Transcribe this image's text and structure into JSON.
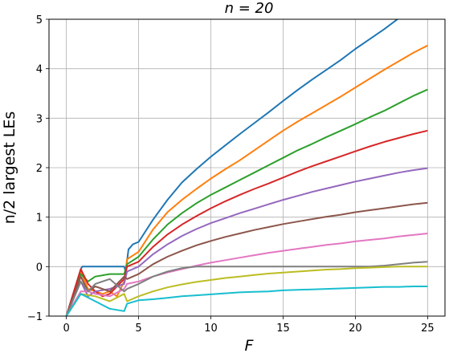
{
  "chart_data": {
    "type": "line",
    "title": "n = 20",
    "xlabel": "F",
    "ylabel": "n/2 largest LEs",
    "xlim": [
      -1.2,
      26.2
    ],
    "ylim": [
      -1,
      5
    ],
    "xticks": [
      "0",
      "5",
      "10",
      "15",
      "20",
      "25"
    ],
    "xtick_values": [
      0,
      5,
      10,
      15,
      20,
      25
    ],
    "yticks": [
      "−1",
      "0",
      "1",
      "2",
      "3",
      "4",
      "5"
    ],
    "ytick_values": [
      -1,
      0,
      1,
      2,
      3,
      4,
      5
    ],
    "grid": true,
    "legend": "none",
    "series": [
      {
        "color": "#1f77b4",
        "points": [
          [
            0,
            -1.0
          ],
          [
            1,
            -0.05
          ],
          [
            1.1,
            0.0
          ],
          [
            2,
            0.0
          ],
          [
            3,
            0.0
          ],
          [
            4,
            0.0
          ],
          [
            4.1,
            -0.1
          ],
          [
            4.3,
            0.35
          ],
          [
            4.6,
            0.45
          ],
          [
            5,
            0.5
          ],
          [
            6,
            0.95
          ],
          [
            7,
            1.35
          ],
          [
            8,
            1.7
          ],
          [
            9,
            1.97
          ],
          [
            10,
            2.22
          ],
          [
            11,
            2.45
          ],
          [
            12,
            2.68
          ],
          [
            13,
            2.9
          ],
          [
            14,
            3.12
          ],
          [
            15,
            3.35
          ],
          [
            16,
            3.57
          ],
          [
            17,
            3.78
          ],
          [
            18,
            3.98
          ],
          [
            19,
            4.18
          ],
          [
            20,
            4.4
          ],
          [
            21,
            4.6
          ],
          [
            22,
            4.8
          ],
          [
            23,
            5.02
          ],
          [
            25,
            5.4
          ]
        ]
      },
      {
        "color": "#ff7f0e",
        "points": [
          [
            0,
            -1.0
          ],
          [
            1,
            -0.1
          ],
          [
            1.5,
            -0.45
          ],
          [
            2,
            -0.5
          ],
          [
            2.5,
            -0.55
          ],
          [
            3,
            -0.5
          ],
          [
            3.5,
            -0.6
          ],
          [
            4,
            -0.3
          ],
          [
            4.2,
            0.15
          ],
          [
            5,
            0.3
          ],
          [
            6,
            0.75
          ],
          [
            7,
            1.1
          ],
          [
            8,
            1.35
          ],
          [
            9,
            1.57
          ],
          [
            10,
            1.78
          ],
          [
            11,
            1.97
          ],
          [
            12,
            2.15
          ],
          [
            13,
            2.35
          ],
          [
            14,
            2.55
          ],
          [
            15,
            2.75
          ],
          [
            16,
            2.93
          ],
          [
            17,
            3.1
          ],
          [
            18,
            3.27
          ],
          [
            19,
            3.44
          ],
          [
            20,
            3.62
          ],
          [
            21,
            3.8
          ],
          [
            22,
            3.98
          ],
          [
            23,
            4.15
          ],
          [
            24,
            4.32
          ],
          [
            25,
            4.47
          ]
        ]
      },
      {
        "color": "#2ca02c",
        "points": [
          [
            0,
            -1.0
          ],
          [
            1,
            -0.15
          ],
          [
            1.5,
            -0.3
          ],
          [
            2,
            -0.2
          ],
          [
            3,
            -0.15
          ],
          [
            4,
            -0.15
          ],
          [
            4.2,
            0.05
          ],
          [
            5,
            0.2
          ],
          [
            6,
            0.55
          ],
          [
            7,
            0.85
          ],
          [
            8,
            1.08
          ],
          [
            9,
            1.28
          ],
          [
            10,
            1.45
          ],
          [
            11,
            1.6
          ],
          [
            12,
            1.75
          ],
          [
            13,
            1.9
          ],
          [
            14,
            2.05
          ],
          [
            15,
            2.2
          ],
          [
            16,
            2.35
          ],
          [
            17,
            2.48
          ],
          [
            18,
            2.62
          ],
          [
            19,
            2.75
          ],
          [
            20,
            2.88
          ],
          [
            21,
            3.02
          ],
          [
            22,
            3.15
          ],
          [
            23,
            3.3
          ],
          [
            24,
            3.45
          ],
          [
            25,
            3.58
          ]
        ]
      },
      {
        "color": "#d62728",
        "points": [
          [
            0,
            -1.0
          ],
          [
            1,
            -0.05
          ],
          [
            1.5,
            -0.35
          ],
          [
            2,
            -0.5
          ],
          [
            2.5,
            -0.6
          ],
          [
            3,
            -0.55
          ],
          [
            3.5,
            -0.4
          ],
          [
            4,
            -0.25
          ],
          [
            4.2,
            0.0
          ],
          [
            5,
            0.1
          ],
          [
            6,
            0.4
          ],
          [
            7,
            0.65
          ],
          [
            8,
            0.85
          ],
          [
            9,
            1.02
          ],
          [
            10,
            1.18
          ],
          [
            11,
            1.32
          ],
          [
            12,
            1.45
          ],
          [
            13,
            1.57
          ],
          [
            14,
            1.68
          ],
          [
            15,
            1.8
          ],
          [
            16,
            1.92
          ],
          [
            17,
            2.03
          ],
          [
            18,
            2.13
          ],
          [
            19,
            2.23
          ],
          [
            20,
            2.33
          ],
          [
            21,
            2.43
          ],
          [
            22,
            2.52
          ],
          [
            23,
            2.6
          ],
          [
            24,
            2.68
          ],
          [
            25,
            2.75
          ]
        ]
      },
      {
        "color": "#9467bd",
        "points": [
          [
            0,
            -1.0
          ],
          [
            1,
            -0.3
          ],
          [
            1.5,
            -0.6
          ],
          [
            2,
            -0.5
          ],
          [
            3,
            -0.45
          ],
          [
            4,
            -0.35
          ],
          [
            4.2,
            -0.1
          ],
          [
            5,
            0.0
          ],
          [
            6,
            0.25
          ],
          [
            7,
            0.45
          ],
          [
            8,
            0.62
          ],
          [
            9,
            0.76
          ],
          [
            10,
            0.88
          ],
          [
            11,
            0.98
          ],
          [
            12,
            1.08
          ],
          [
            13,
            1.17
          ],
          [
            14,
            1.26
          ],
          [
            15,
            1.35
          ],
          [
            16,
            1.43
          ],
          [
            17,
            1.51
          ],
          [
            18,
            1.58
          ],
          [
            19,
            1.65
          ],
          [
            20,
            1.72
          ],
          [
            21,
            1.78
          ],
          [
            22,
            1.84
          ],
          [
            23,
            1.9
          ],
          [
            24,
            1.95
          ],
          [
            25,
            1.99
          ]
        ]
      },
      {
        "color": "#8c564b",
        "points": [
          [
            0,
            -1.0
          ],
          [
            1,
            -0.2
          ],
          [
            1.5,
            -0.5
          ],
          [
            2,
            -0.4
          ],
          [
            3,
            -0.5
          ],
          [
            4,
            -0.2
          ],
          [
            4.2,
            -0.25
          ],
          [
            5,
            -0.15
          ],
          [
            6,
            0.05
          ],
          [
            7,
            0.2
          ],
          [
            8,
            0.32
          ],
          [
            9,
            0.43
          ],
          [
            10,
            0.52
          ],
          [
            11,
            0.6
          ],
          [
            12,
            0.67
          ],
          [
            13,
            0.74
          ],
          [
            14,
            0.8
          ],
          [
            15,
            0.86
          ],
          [
            16,
            0.91
          ],
          [
            17,
            0.96
          ],
          [
            18,
            1.01
          ],
          [
            19,
            1.05
          ],
          [
            20,
            1.1
          ],
          [
            21,
            1.14
          ],
          [
            22,
            1.18
          ],
          [
            23,
            1.22
          ],
          [
            24,
            1.26
          ],
          [
            25,
            1.29
          ]
        ]
      },
      {
        "color": "#e377c2",
        "points": [
          [
            0,
            -1.0
          ],
          [
            1,
            -0.5
          ],
          [
            1.5,
            -0.5
          ],
          [
            2,
            -0.55
          ],
          [
            3,
            -0.6
          ],
          [
            4,
            -0.45
          ],
          [
            4.2,
            -0.35
          ],
          [
            5,
            -0.3
          ],
          [
            6,
            -0.2
          ],
          [
            7,
            -0.12
          ],
          [
            8,
            -0.05
          ],
          [
            9,
            0.02
          ],
          [
            10,
            0.08
          ],
          [
            11,
            0.13
          ],
          [
            12,
            0.18
          ],
          [
            13,
            0.23
          ],
          [
            14,
            0.28
          ],
          [
            15,
            0.32
          ],
          [
            16,
            0.36
          ],
          [
            17,
            0.4
          ],
          [
            18,
            0.44
          ],
          [
            19,
            0.47
          ],
          [
            20,
            0.51
          ],
          [
            21,
            0.54
          ],
          [
            22,
            0.57
          ],
          [
            23,
            0.61
          ],
          [
            24,
            0.64
          ],
          [
            25,
            0.67
          ]
        ]
      },
      {
        "color": "#7f7f7f",
        "points": [
          [
            0,
            -1.0
          ],
          [
            1,
            -0.3
          ],
          [
            1.5,
            -0.5
          ],
          [
            2,
            -0.35
          ],
          [
            3,
            -0.25
          ],
          [
            4,
            -0.5
          ],
          [
            4.2,
            -0.45
          ],
          [
            5,
            -0.35
          ],
          [
            6,
            -0.2
          ],
          [
            7,
            -0.1
          ],
          [
            8,
            -0.03
          ],
          [
            9,
            0.0
          ],
          [
            10,
            0.0
          ],
          [
            11,
            0.0
          ],
          [
            12,
            0.0
          ],
          [
            13,
            0.0
          ],
          [
            14,
            0.0
          ],
          [
            15,
            0.0
          ],
          [
            16,
            0.0
          ],
          [
            17,
            0.0
          ],
          [
            18,
            0.0
          ],
          [
            19,
            0.0
          ],
          [
            20,
            0.0
          ],
          [
            21,
            0.0
          ],
          [
            22,
            0.02
          ],
          [
            23,
            0.05
          ],
          [
            24,
            0.08
          ],
          [
            25,
            0.1
          ]
        ]
      },
      {
        "color": "#bcbd22",
        "points": [
          [
            0,
            -1.0
          ],
          [
            1,
            -0.55
          ],
          [
            2,
            -0.6
          ],
          [
            3,
            -0.7
          ],
          [
            4,
            -0.55
          ],
          [
            4.2,
            -0.7
          ],
          [
            5,
            -0.6
          ],
          [
            6,
            -0.5
          ],
          [
            7,
            -0.42
          ],
          [
            8,
            -0.36
          ],
          [
            9,
            -0.31
          ],
          [
            10,
            -0.27
          ],
          [
            11,
            -0.23
          ],
          [
            12,
            -0.2
          ],
          [
            13,
            -0.17
          ],
          [
            14,
            -0.14
          ],
          [
            15,
            -0.12
          ],
          [
            16,
            -0.1
          ],
          [
            17,
            -0.08
          ],
          [
            18,
            -0.06
          ],
          [
            19,
            -0.05
          ],
          [
            20,
            -0.03
          ],
          [
            21,
            -0.02
          ],
          [
            22,
            -0.01
          ],
          [
            23,
            0.0
          ],
          [
            24,
            0.0
          ],
          [
            25,
            0.0
          ]
        ]
      },
      {
        "color": "#17becf",
        "points": [
          [
            0,
            -1.0
          ],
          [
            1,
            -0.55
          ],
          [
            2,
            -0.7
          ],
          [
            3,
            -0.85
          ],
          [
            4,
            -0.9
          ],
          [
            4.2,
            -0.75
          ],
          [
            5,
            -0.68
          ],
          [
            6,
            -0.66
          ],
          [
            7,
            -0.63
          ],
          [
            8,
            -0.6
          ],
          [
            9,
            -0.58
          ],
          [
            10,
            -0.56
          ],
          [
            11,
            -0.54
          ],
          [
            12,
            -0.52
          ],
          [
            13,
            -0.51
          ],
          [
            14,
            -0.5
          ],
          [
            15,
            -0.48
          ],
          [
            16,
            -0.47
          ],
          [
            17,
            -0.46
          ],
          [
            18,
            -0.45
          ],
          [
            19,
            -0.44
          ],
          [
            20,
            -0.43
          ],
          [
            21,
            -0.42
          ],
          [
            22,
            -0.41
          ],
          [
            23,
            -0.41
          ],
          [
            24,
            -0.4
          ],
          [
            25,
            -0.4
          ]
        ]
      }
    ]
  }
}
